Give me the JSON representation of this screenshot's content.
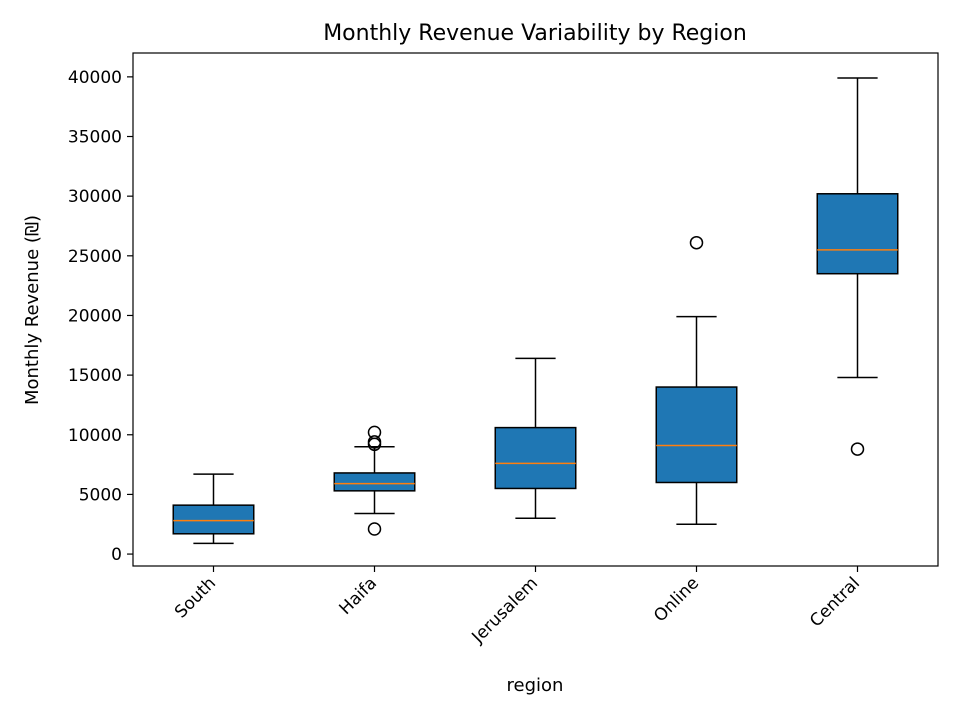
{
  "chart_data": {
    "type": "box",
    "title": "Monthly Revenue Variability by Region",
    "xlabel": "region",
    "ylabel": "Monthly Revenue (₪)",
    "ylim": [
      -1000,
      42000
    ],
    "yticks": [
      0,
      5000,
      10000,
      15000,
      20000,
      25000,
      30000,
      35000,
      40000
    ],
    "grid": false,
    "colors": {
      "box_fill": "#1f77b4",
      "median": "#ff7f0e",
      "edge": "#000000"
    },
    "categories": [
      "South",
      "Haifa",
      "Jerusalem",
      "Online",
      "Central"
    ],
    "boxes": [
      {
        "name": "South",
        "whisker_low": 900,
        "q1": 1700,
        "median": 2800,
        "q3": 4100,
        "whisker_high": 6700,
        "outliers": []
      },
      {
        "name": "Haifa",
        "whisker_low": 3400,
        "q1": 5300,
        "median": 5900,
        "q3": 6800,
        "whisker_high": 9000,
        "outliers": [
          2100,
          9200,
          9400,
          10200
        ]
      },
      {
        "name": "Jerusalem",
        "whisker_low": 3000,
        "q1": 5500,
        "median": 7600,
        "q3": 10600,
        "whisker_high": 16400,
        "outliers": []
      },
      {
        "name": "Online",
        "whisker_low": 2500,
        "q1": 6000,
        "median": 9100,
        "q3": 14000,
        "whisker_high": 19900,
        "outliers": [
          26100
        ]
      },
      {
        "name": "Central",
        "whisker_low": 14800,
        "q1": 23500,
        "median": 25500,
        "q3": 30200,
        "whisker_high": 39900,
        "outliers": [
          8800
        ]
      }
    ]
  }
}
